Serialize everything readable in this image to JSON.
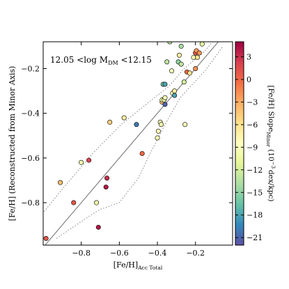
{
  "chart_data": {
    "type": "scatter",
    "annotation": {
      "base": "12.05 <log M",
      "sub": "DM",
      "tail": " <12.15"
    },
    "xlabel": {
      "base": "[Fe/H]",
      "sub": "Acc Total"
    },
    "ylabel": "[Fe/H] (Reconstructed from Minor Axis)",
    "xlim": [
      -1.0,
      -0.005
    ],
    "ylim": [
      -0.99,
      -0.08
    ],
    "xticks": [
      -0.8,
      -0.6,
      -0.4,
      -0.2
    ],
    "xtick_labels": [
      "−0.8",
      "−0.6",
      "−0.4",
      "−0.2"
    ],
    "yticks": [
      -0.8,
      -0.6,
      -0.4,
      -0.2
    ],
    "ytick_labels": [
      "−0.8",
      "−0.6",
      "−0.4",
      "−0.2"
    ],
    "grid": false,
    "identity_line": {
      "color": "#808080"
    },
    "envelope_color": "#808080",
    "envelope_upper": [
      [
        -0.995,
        -0.84
      ],
      [
        -0.92,
        -0.76
      ],
      [
        -0.74,
        -0.58
      ],
      [
        -0.59,
        -0.45
      ],
      [
        -0.4,
        -0.32
      ],
      [
        -0.34,
        -0.28
      ],
      [
        -0.26,
        -0.2
      ],
      [
        -0.16,
        -0.13
      ],
      [
        -0.1,
        -0.07
      ]
    ],
    "envelope_lower": [
      [
        -0.93,
        -0.96
      ],
      [
        -0.74,
        -0.85
      ],
      [
        -0.7,
        -0.83
      ],
      [
        -0.6,
        -0.8
      ],
      [
        -0.5,
        -0.69
      ],
      [
        -0.45,
        -0.6
      ],
      [
        -0.36,
        -0.45
      ],
      [
        -0.28,
        -0.33
      ],
      [
        -0.15,
        -0.21
      ],
      [
        -0.055,
        -0.1
      ]
    ],
    "colorbar": {
      "title": "[Fe/H] Slope",
      "title_sub": "Minor",
      "title_tail": " (10",
      "title_sup": "−3",
      "title_end": "dex/kpc)",
      "vmin": -22,
      "vmax": 5,
      "ticks": [
        3,
        0,
        -3,
        -6,
        -9,
        -12,
        -15,
        -18,
        -21
      ],
      "tick_labels": [
        "3",
        "0",
        "−3",
        "−6",
        "−9",
        "−12",
        "−15",
        "−18",
        "−21"
      ],
      "colormap": "Spectral",
      "stops": [
        "#9e0142",
        "#d53e4f",
        "#f46d43",
        "#fdae61",
        "#fee08b",
        "#ffffbf",
        "#e6f598",
        "#abdda4",
        "#66c2a5",
        "#3288bd",
        "#5e4fa2"
      ]
    },
    "points": [
      {
        "x": -0.985,
        "y": -0.96,
        "c": 1
      },
      {
        "x": -0.91,
        "y": -0.71,
        "c": -4
      },
      {
        "x": -0.84,
        "y": -0.8,
        "c": 1
      },
      {
        "x": -0.8,
        "y": -0.62,
        "c": -10
      },
      {
        "x": -0.76,
        "y": -0.61,
        "c": 2
      },
      {
        "x": -0.72,
        "y": -0.8,
        "c": -10
      },
      {
        "x": -0.71,
        "y": -0.91,
        "c": 4
      },
      {
        "x": -0.665,
        "y": -0.69,
        "c": 3
      },
      {
        "x": -0.67,
        "y": -0.73,
        "c": 4
      },
      {
        "x": -0.65,
        "y": -0.44,
        "c": -5
      },
      {
        "x": -0.575,
        "y": -0.42,
        "c": -7
      },
      {
        "x": -0.51,
        "y": -0.45,
        "c": -20
      },
      {
        "x": -0.48,
        "y": -0.58,
        "c": 0
      },
      {
        "x": -0.4,
        "y": -0.51,
        "c": -9
      },
      {
        "x": -0.395,
        "y": -0.48,
        "c": -8
      },
      {
        "x": -0.385,
        "y": -0.44,
        "c": -9
      },
      {
        "x": -0.38,
        "y": -0.45,
        "c": -10
      },
      {
        "x": -0.375,
        "y": -0.35,
        "c": -4
      },
      {
        "x": -0.375,
        "y": -0.34,
        "c": -11
      },
      {
        "x": -0.365,
        "y": -0.34,
        "c": -10
      },
      {
        "x": -0.37,
        "y": -0.27,
        "c": -16
      },
      {
        "x": -0.36,
        "y": -0.27,
        "c": -18
      },
      {
        "x": -0.36,
        "y": -0.33,
        "c": -9
      },
      {
        "x": -0.36,
        "y": -0.36,
        "c": -21
      },
      {
        "x": -0.35,
        "y": -0.17,
        "c": -13
      },
      {
        "x": -0.335,
        "y": -0.08,
        "c": -13
      },
      {
        "x": -0.32,
        "y": -0.31,
        "c": -8
      },
      {
        "x": -0.31,
        "y": -0.3,
        "c": -7
      },
      {
        "x": -0.31,
        "y": -0.32,
        "c": -18
      },
      {
        "x": -0.325,
        "y": -0.21,
        "c": -9
      },
      {
        "x": -0.29,
        "y": -0.17,
        "c": -15
      },
      {
        "x": -0.285,
        "y": -0.14,
        "c": -7
      },
      {
        "x": -0.275,
        "y": -0.1,
        "c": -14
      },
      {
        "x": -0.275,
        "y": -0.18,
        "c": -13
      },
      {
        "x": -0.26,
        "y": -0.26,
        "c": -12
      },
      {
        "x": -0.255,
        "y": -0.45,
        "c": -9
      },
      {
        "x": -0.245,
        "y": -0.215,
        "c": 0
      },
      {
        "x": -0.23,
        "y": -0.22,
        "c": -6
      },
      {
        "x": -0.21,
        "y": -0.15,
        "c": -9
      },
      {
        "x": -0.2,
        "y": -0.13,
        "c": 1
      },
      {
        "x": -0.195,
        "y": -0.12,
        "c": -2
      },
      {
        "x": -0.19,
        "y": -0.15,
        "c": -6
      },
      {
        "x": -0.18,
        "y": -0.13,
        "c": -2
      },
      {
        "x": -0.2,
        "y": -0.2,
        "c": -2
      },
      {
        "x": -0.165,
        "y": -0.09,
        "c": -11
      }
    ]
  }
}
